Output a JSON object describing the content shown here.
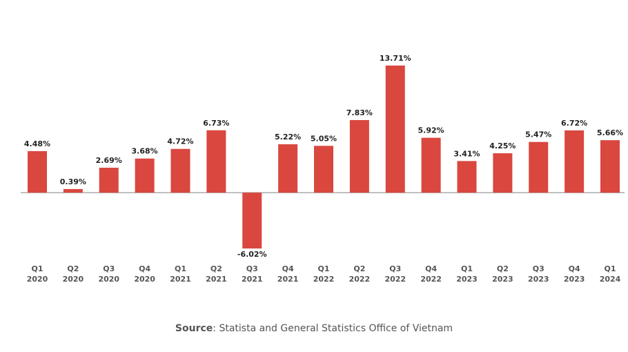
{
  "chart_data": {
    "type": "bar",
    "categories": [
      "Q1 2020",
      "Q2 2020",
      "Q3 2020",
      "Q4 2020",
      "Q1 2021",
      "Q2 2021",
      "Q3 2021",
      "Q4 2021",
      "Q1 2022",
      "Q2 2022",
      "Q3 2022",
      "Q4 2022",
      "Q1 2023",
      "Q2 2023",
      "Q3 2023",
      "Q4 2023",
      "Q1 2024"
    ],
    "values": [
      4.48,
      0.39,
      2.69,
      3.68,
      4.72,
      6.73,
      -6.02,
      5.22,
      5.05,
      7.83,
      13.71,
      5.92,
      3.41,
      4.25,
      5.47,
      6.72,
      5.66
    ],
    "value_labels": [
      "4.48%",
      "0.39%",
      "2.69%",
      "3.68%",
      "4.72%",
      "6.73%",
      "-6.02%",
      "5.22%",
      "5.05%",
      "7.83%",
      "13.71%",
      "5.92%",
      "3.41%",
      "4.25%",
      "5.47%",
      "6.72%",
      "5.66%"
    ],
    "color": "#d9473f",
    "source_label": "Source",
    "source_text": ": Statista and General Statistics Office of Vietnam"
  }
}
